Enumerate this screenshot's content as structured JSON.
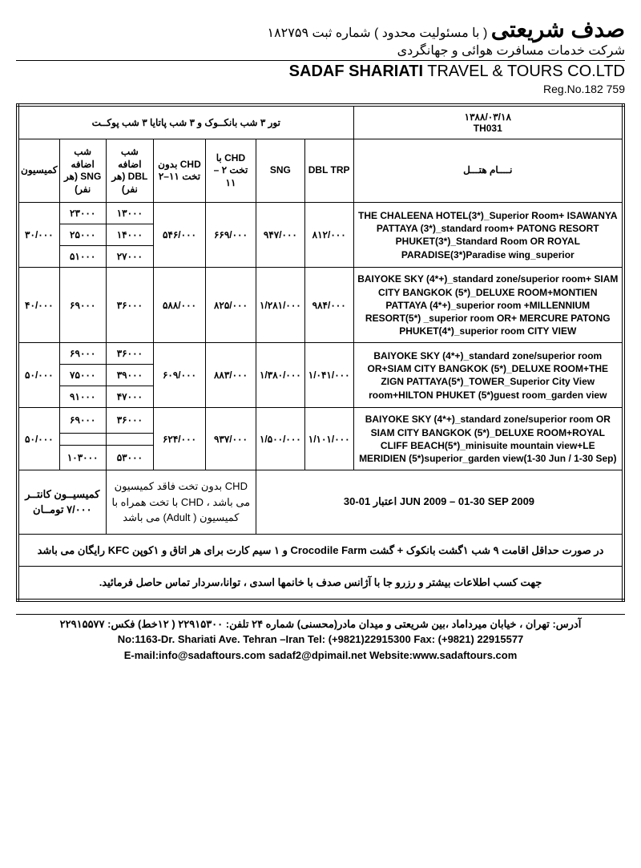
{
  "header": {
    "fa_company": "صدف شریعتی",
    "fa_registration": "( با مسئولیت محدود ) شماره ثبت ۱۸۲۷۵۹",
    "fa_subtitle": "شرکت خدمات مسافرت هوائی و جهانگردی",
    "en_company_bold": "SADAF SHARIATI",
    "en_company_rest": " TRAVEL & TOURS CO.LTD",
    "en_reg": "Reg.No.182 759"
  },
  "tour": {
    "title": "تور ۳ شب بانکــوک و ۳ شب پاتایا ۳ شب پوکــت",
    "date": "۱۳۸۸/۰۳/۱۸",
    "code": "TH031"
  },
  "columns": {
    "hotel": "نــــام هتـــل",
    "dbl_trp": "DBL TRP",
    "sng": "SNG",
    "chd_bed": "CHD با تخت ۲ – ۱۱",
    "chd_nobed": "CHD بدون تخت ۱۱–۲",
    "extra_dbl": "شب اضافه DBL (هر نفر)",
    "extra_sng": "شب اضافه SNG (هر نفر)",
    "commission": "کمیسیون"
  },
  "rows": [
    {
      "hotel": "THE CHALEENA HOTEL(3*)_Superior Room+ ISAWANYA PATTAYA (3*)_standard room+ PATONG RESORT PHUKET(3*)_Standard Room   OR ROYAL PARADISE(3*)Paradise wing_superior",
      "dbl": "۸۱۲/۰۰۰",
      "sng": "۹۴۷/۰۰۰",
      "chd_bed": "۶۶۹/۰۰۰",
      "chd_nobed": "۵۴۶/۰۰۰",
      "extra_dbl": [
        "۱۳۰۰۰",
        "۱۴۰۰۰",
        "۲۷۰۰۰"
      ],
      "extra_sng": [
        "۲۳۰۰۰",
        "۲۵۰۰۰",
        "۵۱۰۰۰"
      ],
      "commission": "۳۰/۰۰۰"
    },
    {
      "hotel": "BAIYOKE SKY (4*+)_standard zone/superior room+ SIAM CITY BANGKOK (5*)_DELUXE ROOM+MONTIEN PATTAYA (4*+)_superior room +MILLENNIUM RESORT(5*) _superior room OR+ MERCURE PATONG PHUKET(4*)_superior room CITY VIEW",
      "dbl": "۹۸۴/۰۰۰",
      "sng": "۱/۲۸۱/۰۰۰",
      "chd_bed": "۸۲۵/۰۰۰",
      "chd_nobed": "۵۸۸/۰۰۰",
      "extra_dbl": [
        "۳۶۰۰۰"
      ],
      "extra_sng": [
        "۶۹۰۰۰"
      ],
      "commission": "۴۰/۰۰۰"
    },
    {
      "hotel": "BAIYOKE SKY (4*+)_standard zone/superior room  OR+SIAM CITY BANGKOK (5*)_DELUXE ROOM+THE ZIGN PATTAYA(5*)_TOWER_Superior City View room+HILTON PHUKET (5*)guest room_garden view",
      "dbl": "۱/۰۴۱/۰۰۰",
      "sng": "۱/۳۸۰/۰۰۰",
      "chd_bed": "۸۸۳/۰۰۰",
      "chd_nobed": "۶۰۹/۰۰۰",
      "extra_dbl": [
        "۳۶۰۰۰",
        "۳۹۰۰۰",
        "۴۷۰۰۰"
      ],
      "extra_sng": [
        "۶۹۰۰۰",
        "۷۵۰۰۰",
        "۹۱۰۰۰"
      ],
      "commission": "۵۰/۰۰۰"
    },
    {
      "hotel": "BAIYOKE SKY (4*+)_standard zone/superior room  OR SIAM CITY BANGKOK (5*)_DELUXE ROOM+ROYAL CLIFF BEACH(5*)_minisuite mountain view+LE MERIDIEN (5*)superior_garden view(1-30 Jun / 1-30 Sep)",
      "dbl": "۱/۱۰۱/۰۰۰",
      "sng": "۱/۵۰۰/۰۰۰",
      "chd_bed": "۹۳۷/۰۰۰",
      "chd_nobed": "۶۲۴/۰۰۰",
      "extra_dbl": [
        "۳۶۰۰۰",
        "",
        "۵۳۰۰۰"
      ],
      "extra_sng": [
        "۶۹۰۰۰",
        "",
        "۱۰۳۰۰۰"
      ],
      "commission": "۵۰/۰۰۰"
    }
  ],
  "footer": {
    "validity": "اعتبار  01-30 JUN 2009 – 01-30 SEP 2009",
    "chd_note": "CHD بدون تخت فاقد کمیسیون می باشد ، CHD با تخت همراه با کمیسیون ( Adult) می باشد",
    "counter_comm": "کمیسیــون کانتــر ۷/۰۰۰ تومــان",
    "note": "در صورت حداقل اقامت ۹ شب ۱گشت بانکوک + گشت Crocodile Farm و ۱ سیم کارت برای هر اتاق و ۱کوپن KFC رایگان می باشد",
    "contact_note": "جهت کسب اطلاعات بیشتر و رزرو جا با آژانس صدف با خانمها اسدی ، توانا،سردار تماس حاصل فرمائید."
  },
  "address": {
    "fa": "آدرس: تهران ، خیابان میرداماد ،بین شریعتی و میدان مادر(محسنی) شماره ۲۴  تلفن: ۲۲۹۱۵۳۰۰ ( ۱۲خط)  فکس: ۲۲۹۱۵۵۷۷",
    "en1": "No:1163-Dr. Shariati Ave. Tehran –Iran Tel: (+9821)22915300 Fax: (+9821) 22915577",
    "en2": "E-mail:info@sadaftours.com   sadaf2@dpimail.net   Website:www.sadaftours.com"
  },
  "styling": {
    "background_color": "#ffffff",
    "text_color": "#000000",
    "border_color": "#000000",
    "table_border_style": "4px double",
    "cell_border_style": "1px solid",
    "title_fontsize": 22,
    "header_fa_fontsize": 28,
    "body_fontsize": 12,
    "price_fontsize": 14,
    "font_family": "Tahoma, Arial, sans-serif"
  }
}
